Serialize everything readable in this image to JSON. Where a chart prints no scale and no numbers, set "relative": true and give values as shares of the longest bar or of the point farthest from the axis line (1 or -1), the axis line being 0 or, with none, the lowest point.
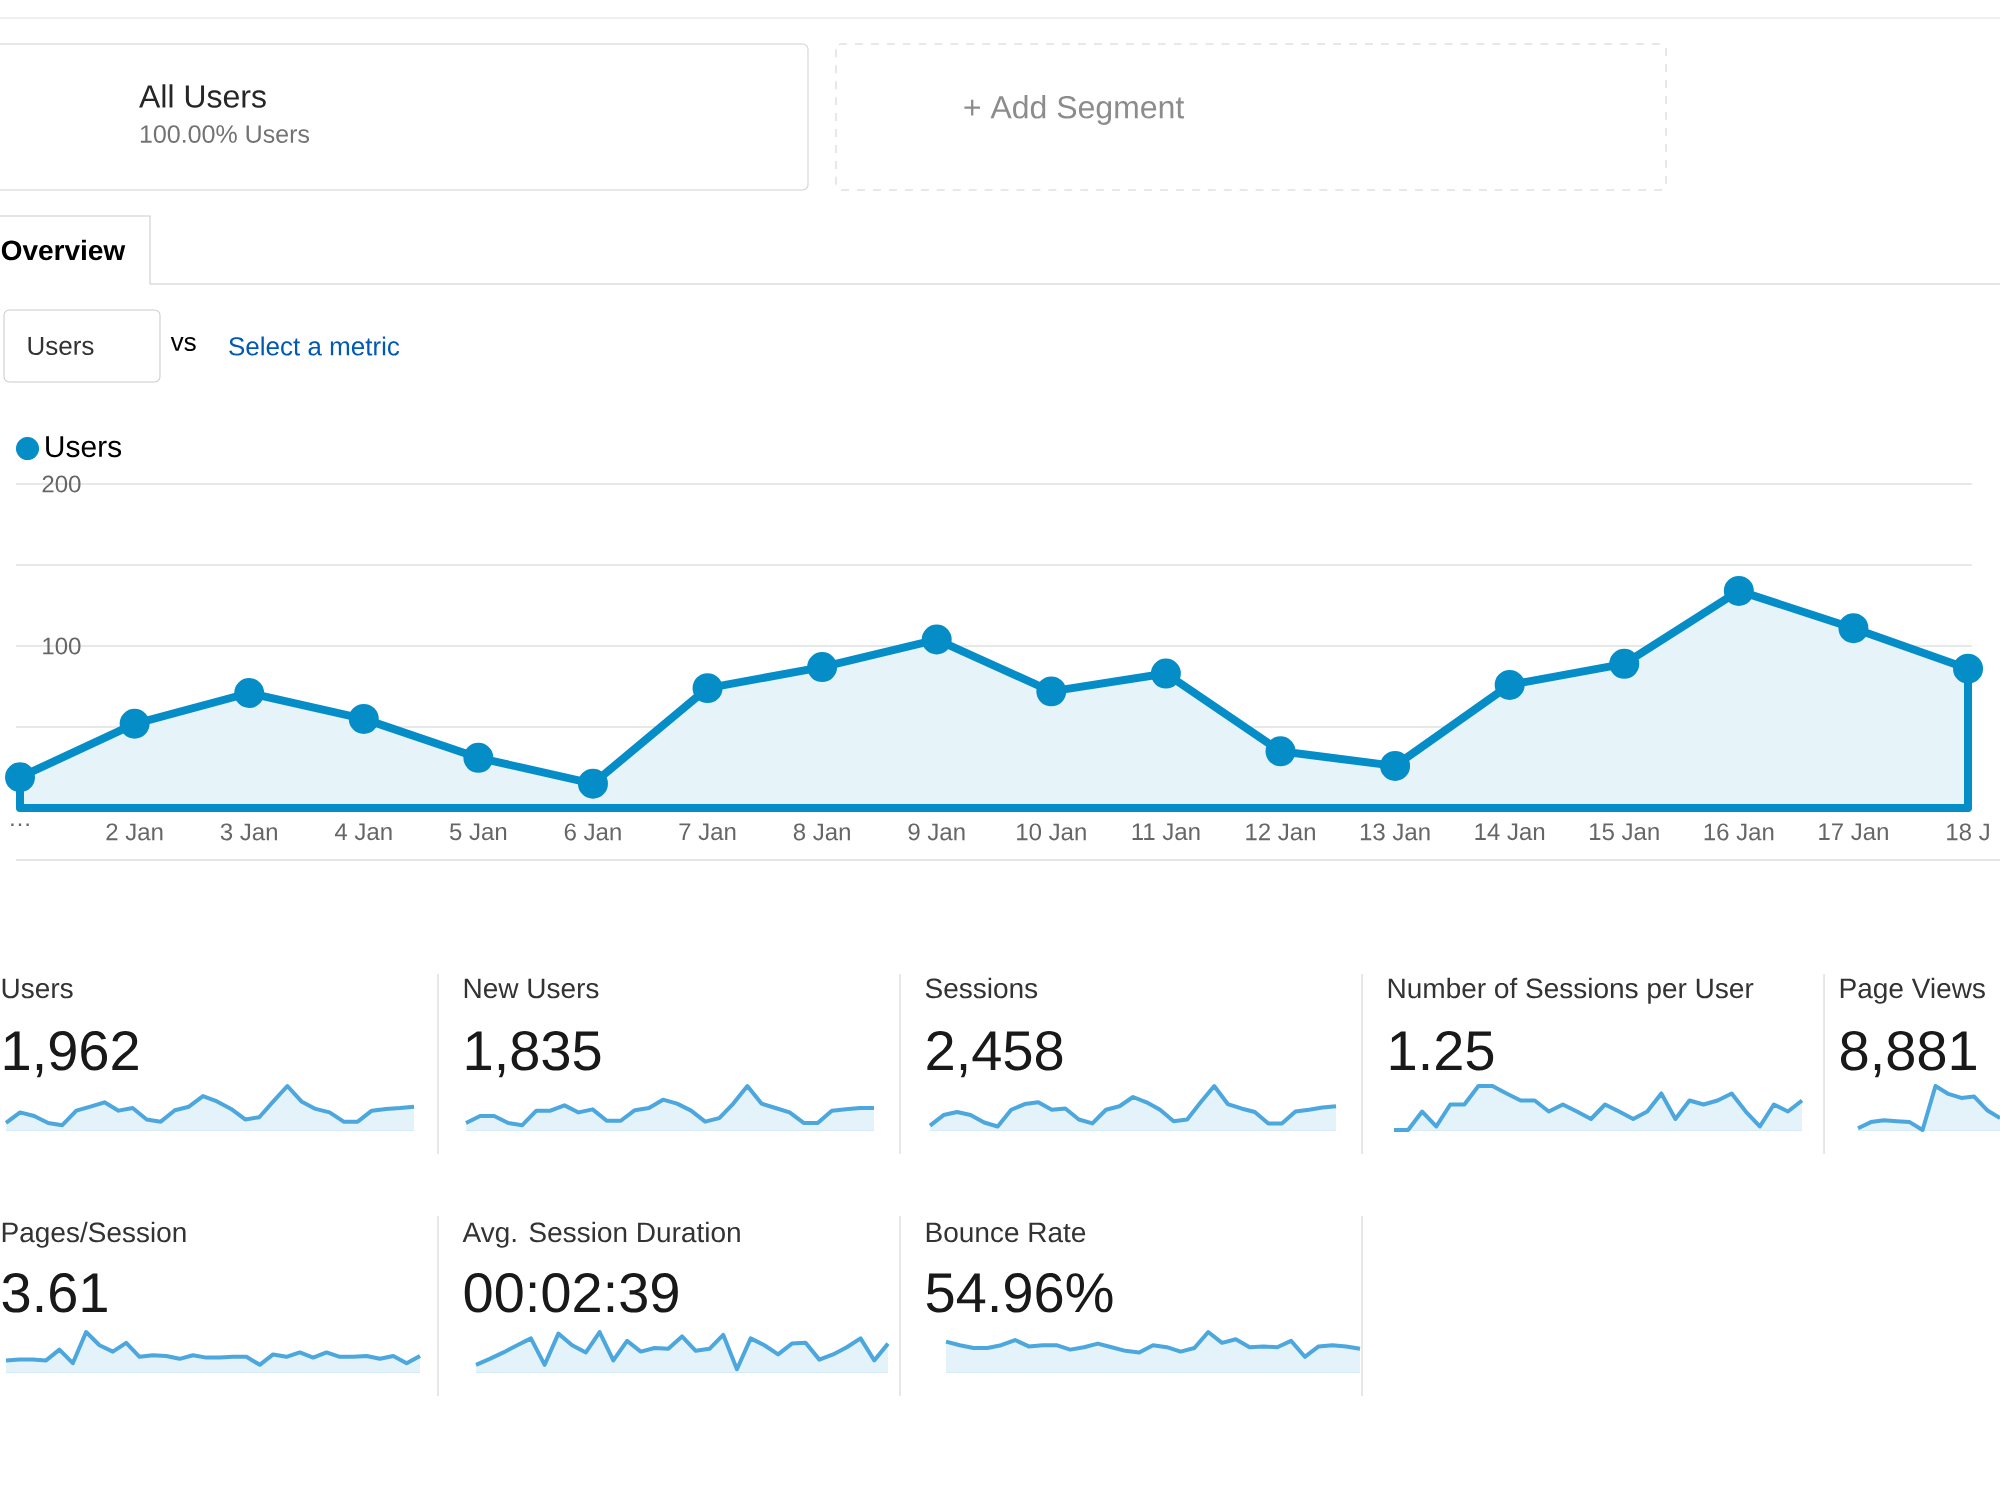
{
  "chart_data": [
    {
      "type": "area",
      "categories": [
        "…",
        "2 Jan",
        "3 Jan",
        "4 Jan",
        "5 Jan",
        "6 Jan",
        "7 Jan",
        "8 Jan",
        "9 Jan",
        "10 Jan",
        "11 Jan",
        "12 Jan",
        "13 Jan",
        "14 Jan",
        "15 Jan",
        "16 Jan",
        "17 Jan",
        "18 J"
      ],
      "series": [
        {
          "name": "Users",
          "color": "#058dc7",
          "values": [
            19,
            52,
            71,
            55,
            31,
            15,
            74,
            87,
            104,
            72,
            83,
            35,
            26,
            76,
            89,
            134,
            111,
            86
          ]
        }
      ],
      "ylim": [
        0,
        200
      ],
      "yticks": [
        {
          "value": 50,
          "label": null
        },
        100,
        {
          "value": 150,
          "label": null
        },
        200
      ],
      "grid": "y",
      "legend": "top left",
      "marker": "circle",
      "annotations": [
        "All Users",
        "100.00% Users",
        "+ Add Segment",
        "Overview",
        "Users",
        "vs",
        "Select a metric"
      ]
    },
    {
      "type": "area",
      "title": "Users",
      "subtitle": "1,962",
      "relative": true,
      "categories": [
        null,
        null,
        null,
        null,
        null,
        null,
        null,
        null,
        null,
        null,
        null,
        null,
        null,
        null,
        null,
        null,
        null,
        null,
        null,
        null,
        null,
        null,
        null,
        null,
        null,
        null,
        null,
        null,
        null,
        null
      ],
      "series": [
        {
          "color": "#4ba7dd",
          "values": [
            0.16,
            0.4,
            0.32,
            0.16,
            0.11,
            0.44,
            0.53,
            0.63,
            0.44,
            0.5,
            0.24,
            0.19,
            0.45,
            0.53,
            0.77,
            0.65,
            0.48,
            0.24,
            0.29,
            0.65,
            1,
            0.65,
            0.48,
            0.4,
            0.19,
            0.19,
            0.44,
            0.48,
            0.5,
            0.53
          ]
        }
      ]
    },
    {
      "type": "area",
      "title": "New Users",
      "subtitle": "1,835",
      "relative": true,
      "categories": [
        null,
        null,
        null,
        null,
        null,
        null,
        null,
        null,
        null,
        null,
        null,
        null,
        null,
        null,
        null,
        null,
        null,
        null,
        null,
        null,
        null,
        null,
        null,
        null,
        null,
        null,
        null,
        null,
        null,
        null
      ],
      "series": [
        {
          "color": "#4ba7dd",
          "values": [
            0.16,
            0.32,
            0.32,
            0.16,
            0.11,
            0.44,
            0.44,
            0.56,
            0.4,
            0.47,
            0.21,
            0.21,
            0.45,
            0.5,
            0.69,
            0.6,
            0.44,
            0.19,
            0.27,
            0.6,
            1,
            0.6,
            0.5,
            0.4,
            0.16,
            0.16,
            0.44,
            0.47,
            0.5,
            0.5
          ]
        }
      ]
    },
    {
      "type": "area",
      "title": "Sessions",
      "subtitle": "2,458",
      "relative": true,
      "categories": [
        null,
        null,
        null,
        null,
        null,
        null,
        null,
        null,
        null,
        null,
        null,
        null,
        null,
        null,
        null,
        null,
        null,
        null,
        null,
        null,
        null,
        null,
        null,
        null,
        null,
        null,
        null,
        null,
        null,
        null,
        null
      ],
      "series": [
        {
          "color": "#4ba7dd",
          "values": [
            0.1,
            0.34,
            0.41,
            0.34,
            0.17,
            0.08,
            0.46,
            0.59,
            0.63,
            0.46,
            0.49,
            0.24,
            0.15,
            0.46,
            0.54,
            0.75,
            0.63,
            0.46,
            0.2,
            0.24,
            0.63,
            1,
            0.59,
            0.49,
            0.41,
            0.15,
            0.15,
            0.42,
            0.46,
            0.51,
            0.54
          ]
        }
      ]
    },
    {
      "type": "area",
      "title": "Number of Sessions per User",
      "subtitle": "1.25",
      "relative": true,
      "categories": [
        null,
        null,
        null,
        null,
        null,
        null,
        null,
        null,
        null,
        null,
        null,
        null,
        null,
        null,
        null,
        null,
        null,
        null,
        null,
        null,
        null,
        null,
        null,
        null,
        null,
        null,
        null,
        null,
        null,
        null
      ],
      "series": [
        {
          "color": "#4ba7dd",
          "values": [
            0,
            0,
            0.42,
            0.08,
            0.58,
            0.58,
            1,
            1,
            0.83,
            0.67,
            0.67,
            0.42,
            0.58,
            0.42,
            0.25,
            0.58,
            0.42,
            0.25,
            0.42,
            0.83,
            0.25,
            0.67,
            0.58,
            0.67,
            0.83,
            0.42,
            0.08,
            0.58,
            0.42,
            0.67
          ]
        }
      ]
    },
    {
      "type": "area",
      "title": "Page Views",
      "subtitle": "8,881",
      "relative": true,
      "categories": [
        null,
        null,
        null,
        null,
        null,
        null,
        null,
        null,
        null,
        null,
        null,
        null
      ],
      "series": [
        {
          "color": "#4ba7dd",
          "values": [
            0.04,
            0.18,
            0.22,
            0.2,
            0.18,
            0,
            1,
            0.82,
            0.73,
            0.76,
            0.45,
            0.27
          ]
        }
      ]
    },
    {
      "type": "area",
      "title": "Pages/Session",
      "subtitle": "3.61",
      "relative": true,
      "categories": [
        null,
        null,
        null,
        null,
        null,
        null,
        null,
        null,
        null,
        null,
        null,
        null,
        null,
        null,
        null,
        null,
        null,
        null,
        null,
        null,
        null,
        null,
        null,
        null,
        null,
        null,
        null,
        null,
        null,
        null,
        null,
        null
      ],
      "series": [
        {
          "color": "#4ba7dd",
          "values": [
            0.29,
            0.31,
            0.31,
            0.29,
            0.56,
            0.22,
            1,
            0.67,
            0.51,
            0.73,
            0.38,
            0.42,
            0.4,
            0.33,
            0.42,
            0.36,
            0.36,
            0.38,
            0.38,
            0.18,
            0.44,
            0.38,
            0.49,
            0.36,
            0.49,
            0.38,
            0.38,
            0.4,
            0.33,
            0.4,
            0.22,
            0.4
          ]
        }
      ]
    },
    {
      "type": "area",
      "title": "Avg. Session Duration",
      "subtitle": "00:02:39",
      "relative": true,
      "categories": [
        null,
        null,
        null,
        null,
        null,
        null,
        null,
        null,
        null,
        null,
        null,
        null,
        null,
        null,
        null,
        null,
        null,
        null,
        null,
        null,
        null,
        null,
        null,
        null,
        null,
        null,
        null,
        null,
        null,
        null,
        null
      ],
      "series": [
        {
          "color": "#4ba7dd",
          "values": [
            0.18,
            0.33,
            0.49,
            0.67,
            0.84,
            0.18,
            0.96,
            0.67,
            0.49,
            1,
            0.29,
            0.78,
            0.51,
            0.6,
            0.58,
            0.89,
            0.53,
            0.58,
            0.93,
            0.07,
            0.84,
            0.67,
            0.44,
            0.71,
            0.73,
            0.31,
            0.44,
            0.62,
            0.84,
            0.29,
            0.71
          ]
        }
      ]
    },
    {
      "type": "area",
      "title": "Bounce Rate",
      "subtitle": "54.96%",
      "relative": true,
      "categories": [
        null,
        null,
        null,
        null,
        null,
        null,
        null,
        null,
        null,
        null,
        null,
        null,
        null,
        null,
        null,
        null,
        null,
        null,
        null,
        null,
        null,
        null,
        null,
        null,
        null,
        null,
        null,
        null,
        null,
        null,
        null
      ],
      "series": [
        {
          "color": "#4ba7dd",
          "values": [
            0.76,
            0.67,
            0.6,
            0.6,
            0.67,
            0.8,
            0.64,
            0.67,
            0.67,
            0.56,
            0.62,
            0.71,
            0.62,
            0.53,
            0.49,
            0.67,
            0.62,
            0.51,
            0.6,
            1,
            0.73,
            0.82,
            0.62,
            0.64,
            0.62,
            0.78,
            0.38,
            0.64,
            0.67,
            0.64,
            0.58
          ]
        }
      ]
    }
  ]
}
